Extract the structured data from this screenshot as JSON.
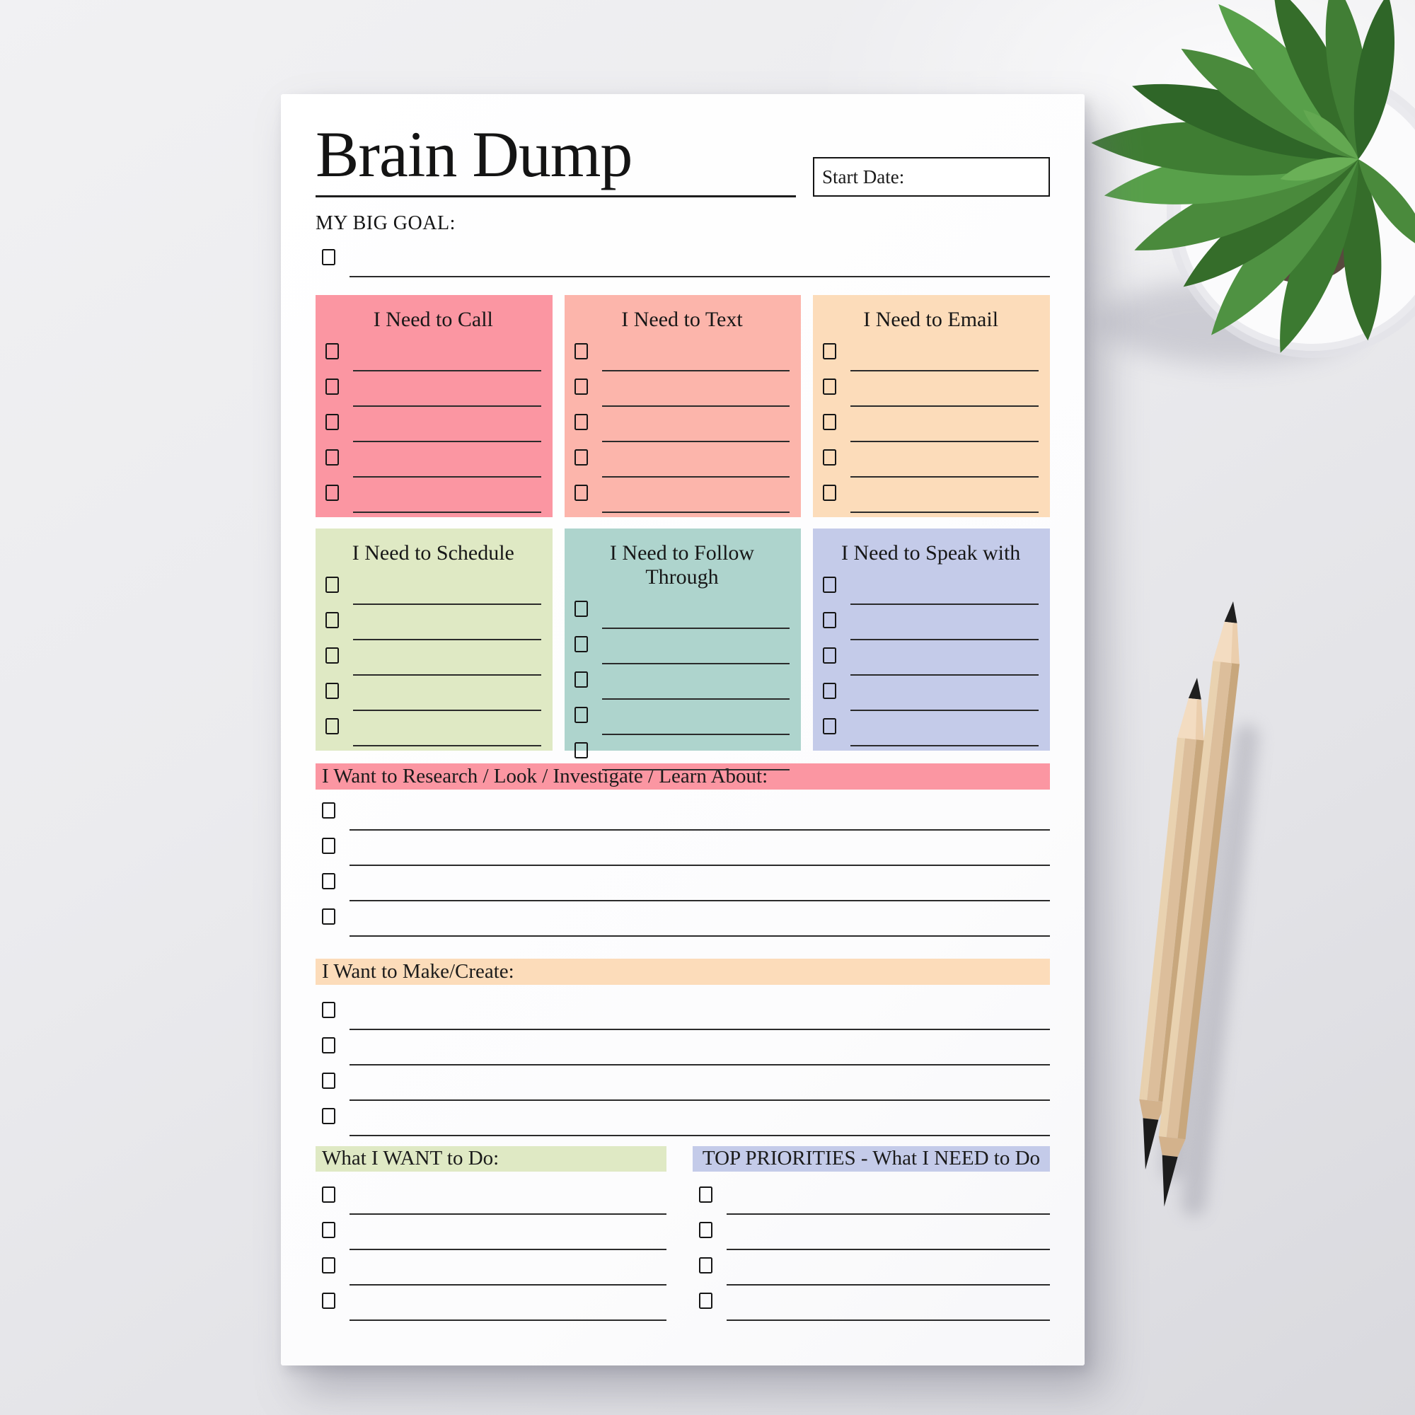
{
  "page": {
    "title": "Brain Dump",
    "start_date_label": "Start Date:",
    "big_goal_label": "MY BIG GOAL:",
    "paper_color": "#ffffff",
    "ink_color": "#1a1a1a"
  },
  "need_boxes": [
    {
      "title": "I Need to Call",
      "color": "#fb96a2",
      "lines": 5
    },
    {
      "title": "I Need to Text",
      "color": "#fcb5ab",
      "lines": 5
    },
    {
      "title": "I Need to Email",
      "color": "#fcdcba",
      "lines": 5
    },
    {
      "title": "I Need to Schedule",
      "color": "#dfe9c4",
      "lines": 5
    },
    {
      "title": "I Need to Follow Through",
      "color": "#aed4cd",
      "lines": 5
    },
    {
      "title": "I Need to Speak with",
      "color": "#c4cbe9",
      "lines": 5
    }
  ],
  "want_sections": [
    {
      "title": "I Want to Research / Look / Investigate / Learn About:",
      "color": "#fb96a2",
      "lines": 4
    },
    {
      "title": "I Want to Make/Create:",
      "color": "#fcdcba",
      "lines": 4
    }
  ],
  "bottom_sections": [
    {
      "title": "What I WANT to Do:",
      "color": "#dfe9c4",
      "lines": 4,
      "align": "left"
    },
    {
      "title": "TOP PRIORITIES - What I NEED to Do",
      "color": "#c4cbe9",
      "lines": 4,
      "align": "center"
    }
  ]
}
